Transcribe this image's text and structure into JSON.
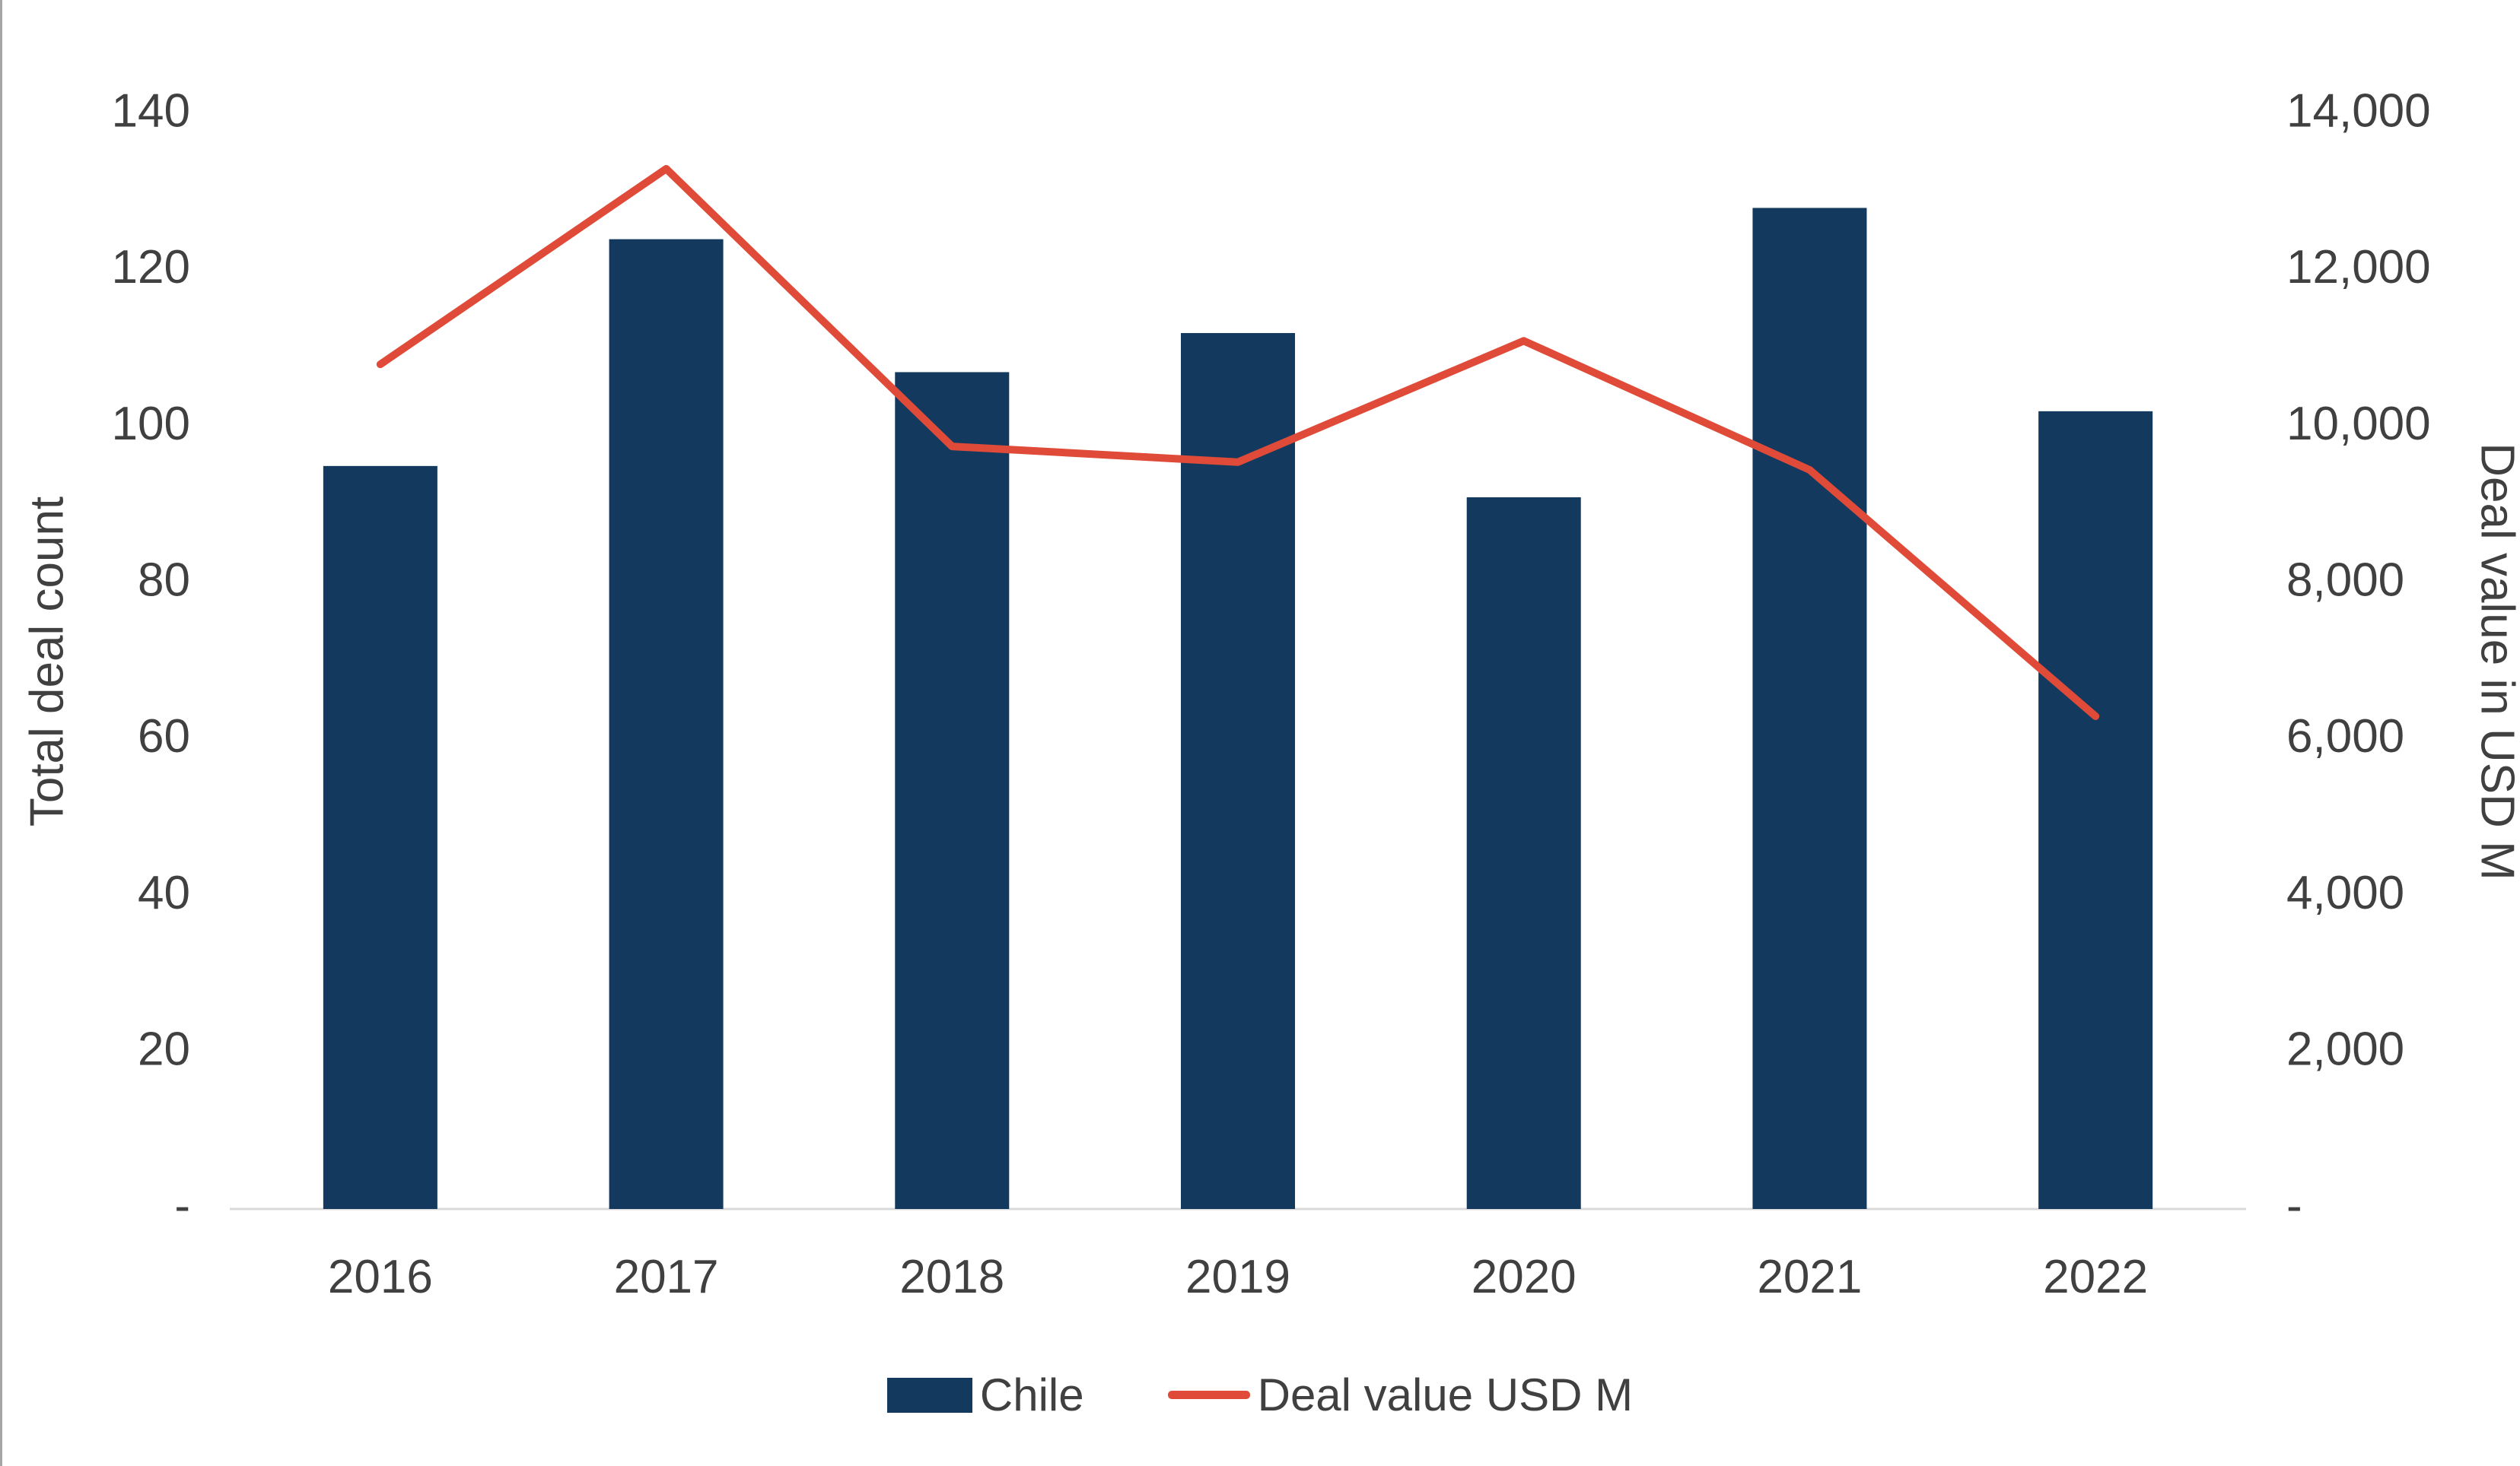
{
  "chart_data": {
    "type": "bar",
    "subtype": "combo-bar-line",
    "title": "",
    "categories": [
      "2016",
      "2017",
      "2018",
      "2019",
      "2020",
      "2021",
      "2022"
    ],
    "series": [
      {
        "name": "Chile",
        "render": "bar",
        "axis": "left",
        "color": "#133A5E",
        "values": [
          95,
          124,
          107,
          112,
          91,
          128,
          102
        ]
      },
      {
        "name": "Deal value USD M",
        "render": "line",
        "axis": "right",
        "color": "#DF4B38",
        "values": [
          10800,
          13300,
          9750,
          9550,
          11100,
          9450,
          6300
        ]
      }
    ],
    "left_axis": {
      "title": "Total deal count",
      "min": 0,
      "max": 140,
      "step": 20,
      "tick_labels_bottom_to_top": [
        "-",
        "20",
        "40",
        "60",
        "80",
        "100",
        "120",
        "140"
      ]
    },
    "right_axis": {
      "title": "Deal value in USD M",
      "min": 0,
      "max": 14000,
      "step": 2000,
      "tick_labels_bottom_to_top": [
        "-",
        "2,000",
        "4,000",
        "6,000",
        "8,000",
        "10,000",
        "12,000",
        "14,000"
      ]
    },
    "legend": [
      {
        "label": "Chile",
        "swatch": "bar",
        "color": "#133A5E"
      },
      {
        "label": "Deal value USD M",
        "swatch": "line",
        "color": "#DF4B38"
      }
    ],
    "grid": "off",
    "legend_position": "bottom-center"
  },
  "colors": {
    "bar": "#133A5E",
    "line": "#DF4B38",
    "text": "#404040",
    "axis_line": "#D9D9D9",
    "page_left_border": "#A6A6A6",
    "background": "#FFFFFF"
  }
}
